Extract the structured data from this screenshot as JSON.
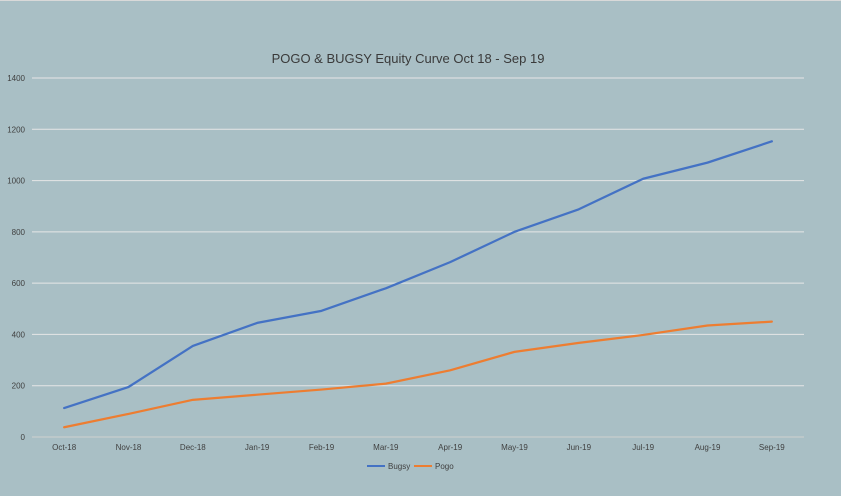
{
  "chart_data": {
    "type": "line",
    "title": "POGO & BUGSY Equity Curve Oct 18 - Sep 19",
    "xlabel": "",
    "ylabel": "",
    "categories": [
      "Oct-18",
      "Nov-18",
      "Dec-18",
      "Jan-19",
      "Feb-19",
      "Mar-19",
      "Apr-19",
      "May-19",
      "Jun-19",
      "Jul-19",
      "Aug-19",
      "Sep-19"
    ],
    "ylim": [
      0,
      1400
    ],
    "yticks": [
      0,
      200,
      400,
      600,
      800,
      1000,
      1200,
      1400
    ],
    "grid": true,
    "legend_position": "bottom",
    "series": [
      {
        "name": "Bugsy",
        "color": "#4472c4",
        "values": [
          113,
          195,
          355,
          445,
          492,
          580,
          682,
          800,
          888,
          1007,
          1070,
          1153
        ]
      },
      {
        "name": "Pogo",
        "color": "#ed7d31",
        "values": [
          38,
          90,
          145,
          165,
          185,
          208,
          260,
          332,
          367,
          398,
          435,
          450
        ]
      }
    ]
  }
}
